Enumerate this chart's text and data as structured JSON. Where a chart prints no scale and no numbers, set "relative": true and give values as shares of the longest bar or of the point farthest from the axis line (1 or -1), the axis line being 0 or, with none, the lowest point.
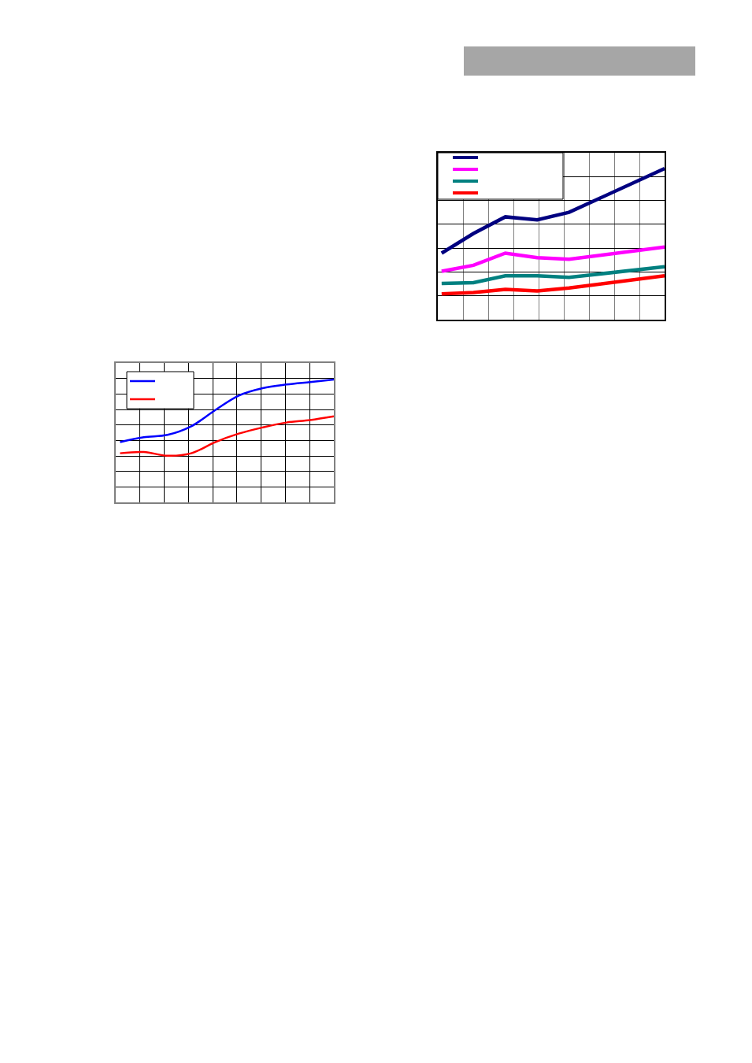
{
  "chart_data": [
    {
      "type": "line",
      "relative": true,
      "grid": true,
      "categories": [
        null,
        null,
        null,
        null,
        null,
        null,
        null,
        null
      ],
      "series": [
        {
          "color": "#000080",
          "values": [
            0.44,
            0.57,
            0.68,
            0.66,
            0.71,
            null,
            null,
            1
          ]
        },
        {
          "color": "#ff00ff",
          "values": [
            0.32,
            0.36,
            0.44,
            0.41,
            0.4,
            null,
            null,
            0.48
          ]
        },
        {
          "color": "#008080",
          "values": [
            0.24,
            0.245,
            0.29,
            0.29,
            0.28,
            null,
            null,
            0.35
          ]
        },
        {
          "color": "#ff0000",
          "values": [
            0.17,
            0.18,
            0.2,
            0.19,
            0.21,
            null,
            null,
            0.29
          ]
        }
      ]
    },
    {
      "type": "line",
      "relative": true,
      "grid": true,
      "categories": [
        null,
        null,
        null,
        null,
        null,
        null,
        null,
        null,
        null,
        null
      ],
      "series": [
        {
          "color": "#0000ff",
          "values": [
            0.49,
            0.53,
            0.55,
            0.62,
            0.75,
            0.87,
            0.93,
            0.96,
            0.98,
            1
          ]
        },
        {
          "color": "#ff0000",
          "values": [
            0.4,
            0.41,
            0.38,
            0.4,
            0.49,
            0.56,
            0.61,
            0.65,
            0.67,
            0.7
          ]
        }
      ]
    }
  ]
}
